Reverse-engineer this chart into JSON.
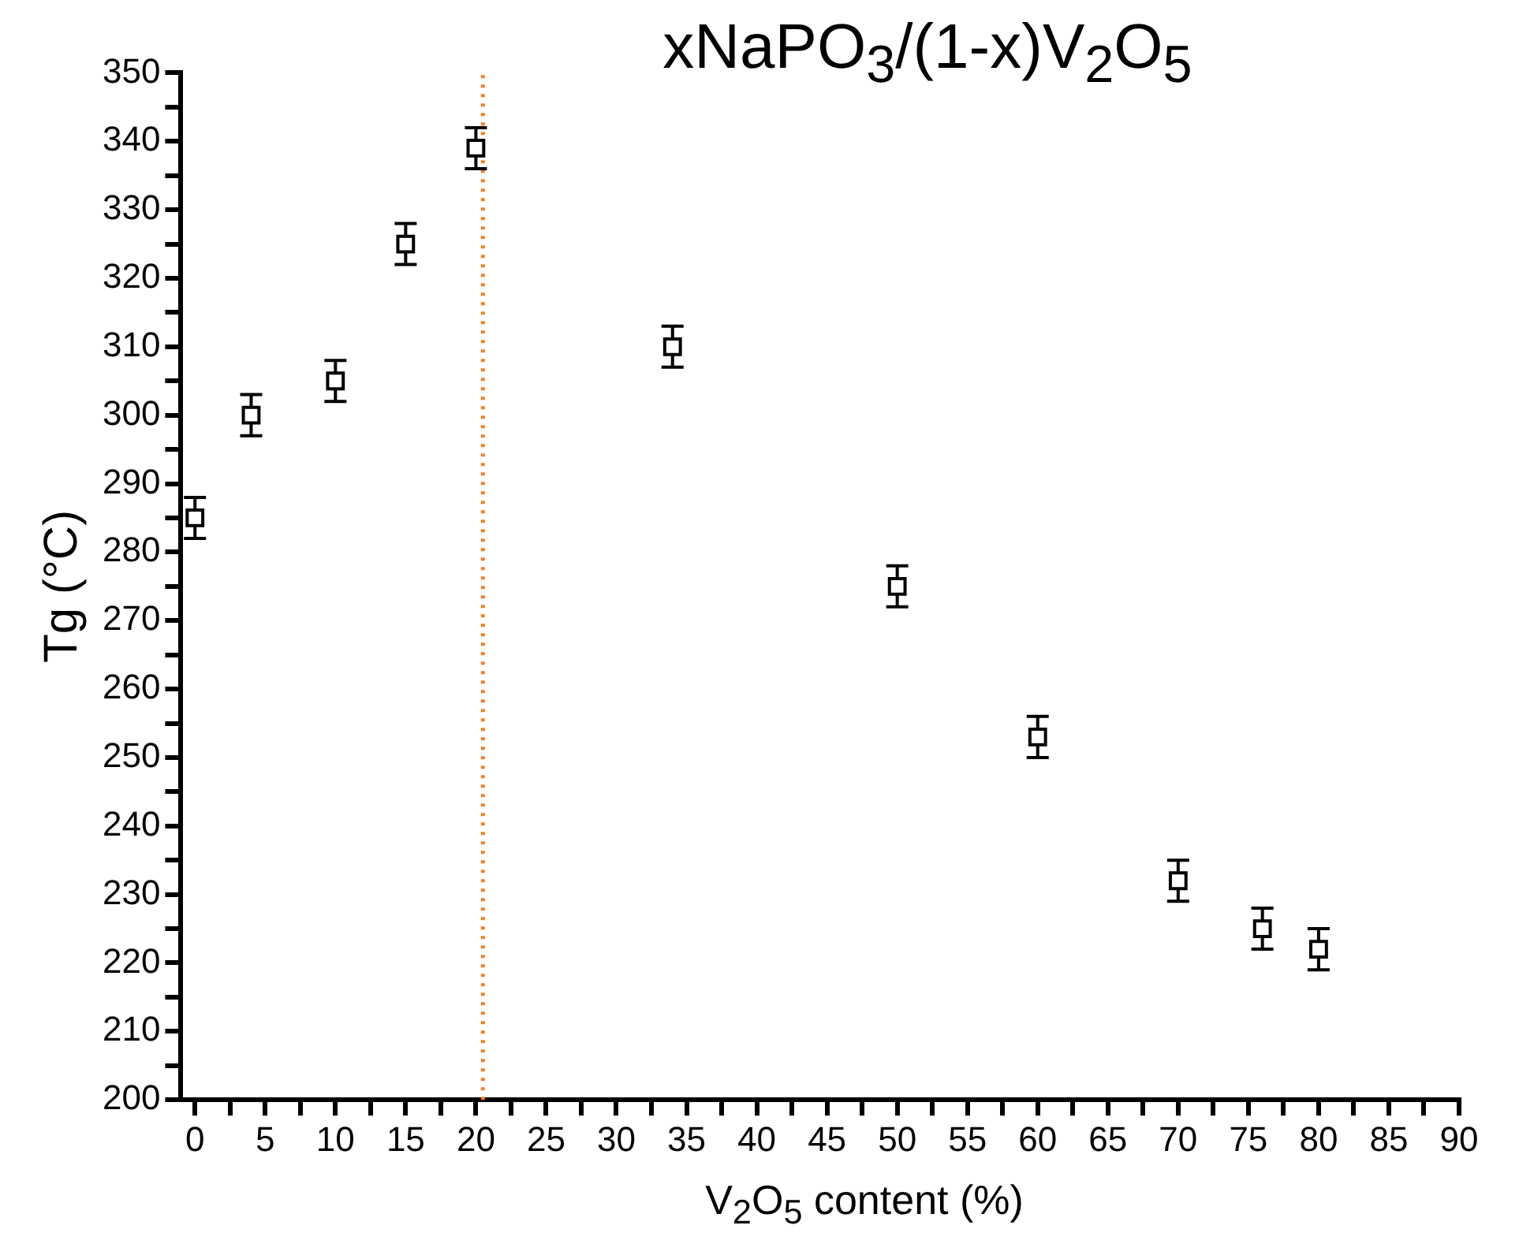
{
  "chart_data": {
    "type": "scatter",
    "title": "xNaPO$_{3}$/(1-x)V$_{2}$O$_{5}$",
    "xlabel": "V$_{2}$O$_{5}$ content (%)",
    "ylabel": "Tg (°C)",
    "x": [
      0,
      4,
      10,
      15,
      20,
      34,
      50,
      60,
      70,
      76,
      80
    ],
    "series": [
      {
        "color": "#000000",
        "values": [
          285,
          300,
          305,
          325,
          339,
          310,
          275,
          253,
          232,
          225,
          222
        ],
        "errors": [
          3,
          3,
          3,
          3,
          3,
          3,
          3,
          3,
          3,
          3,
          3
        ]
      }
    ],
    "marker": "square",
    "grid": false,
    "legend": false,
    "xlim": [
      -1,
      90
    ],
    "ylim": [
      200,
      350
    ],
    "xticks": [
      0,
      {
        "value": 2.5,
        "label": null
      },
      5,
      {
        "value": 7.5,
        "label": null
      },
      10,
      {
        "value": 12.5,
        "label": null
      },
      15,
      {
        "value": 17.5,
        "label": null
      },
      20,
      {
        "value": 22.5,
        "label": null
      },
      25,
      {
        "value": 27.5,
        "label": null
      },
      30,
      {
        "value": 32.5,
        "label": null
      },
      35,
      {
        "value": 37.5,
        "label": null
      },
      40,
      {
        "value": 42.5,
        "label": null
      },
      45,
      {
        "value": 47.5,
        "label": null
      },
      50,
      {
        "value": 52.5,
        "label": null
      },
      55,
      {
        "value": 57.5,
        "label": null
      },
      60,
      {
        "value": 62.5,
        "label": null
      },
      65,
      {
        "value": 67.5,
        "label": null
      },
      70,
      {
        "value": 72.5,
        "label": null
      },
      75,
      {
        "value": 77.5,
        "label": null
      },
      80,
      {
        "value": 82.5,
        "label": null
      },
      85,
      {
        "value": 87.5,
        "label": null
      },
      90
    ],
    "yticks": [
      200,
      {
        "value": 205,
        "label": null
      },
      210,
      {
        "value": 215,
        "label": null
      },
      220,
      {
        "value": 225,
        "label": null
      },
      230,
      {
        "value": 235,
        "label": null
      },
      240,
      {
        "value": 245,
        "label": null
      },
      250,
      {
        "value": 255,
        "label": null
      },
      260,
      {
        "value": 265,
        "label": null
      },
      270,
      {
        "value": 275,
        "label": null
      },
      280,
      {
        "value": 285,
        "label": null
      },
      290,
      {
        "value": 295,
        "label": null
      },
      300,
      {
        "value": 305,
        "label": null
      },
      310,
      {
        "value": 315,
        "label": null
      },
      320,
      {
        "value": 325,
        "label": null
      },
      330,
      {
        "value": 335,
        "label": null
      },
      340,
      {
        "value": 345,
        "label": null
      },
      350
    ],
    "ref_lines": [
      {
        "axis": "x",
        "value": 20.5,
        "color": "#f08030",
        "line_style": "dotted"
      }
    ]
  }
}
